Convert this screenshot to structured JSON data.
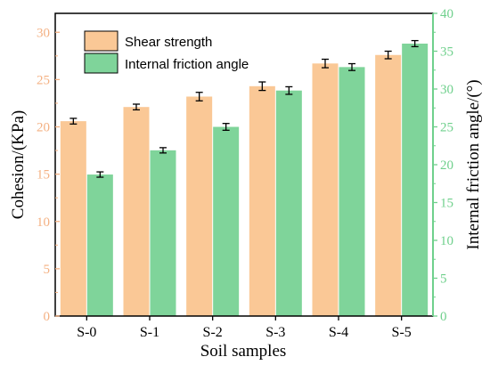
{
  "chart_data": {
    "type": "bar",
    "xlabel": "Soil samples",
    "ylabel_left": "Cohesion/(KPa)",
    "ylabel_right": "Internal friction angle/(°)",
    "categories": [
      "S-0",
      "S-1",
      "S-2",
      "S-3",
      "S-4",
      "S-5"
    ],
    "ylim_left": [
      0,
      32
    ],
    "yticks_left": [
      0,
      5,
      10,
      15,
      20,
      25,
      30
    ],
    "ylim_right": [
      0,
      40
    ],
    "yticks_right": [
      0,
      5,
      10,
      15,
      20,
      25,
      30,
      35,
      40
    ],
    "grid": false,
    "legend_position": "top-left",
    "series": [
      {
        "name": "Shear strength",
        "axis": "left",
        "color": "#fac896",
        "values": [
          20.6,
          22.1,
          23.2,
          24.3,
          26.7,
          27.6
        ],
        "errors": [
          0.3,
          0.3,
          0.45,
          0.45,
          0.45,
          0.4
        ]
      },
      {
        "name": "Internal friction angle",
        "axis": "right",
        "color": "#7fd49a",
        "values": [
          18.7,
          21.9,
          25.0,
          29.8,
          32.9,
          36.0
        ],
        "errors": [
          0.35,
          0.35,
          0.45,
          0.5,
          0.45,
          0.4
        ]
      }
    ],
    "colors": {
      "left_axis": "#f4b183",
      "right_axis": "#6fd08c",
      "frame": "#000000"
    }
  }
}
